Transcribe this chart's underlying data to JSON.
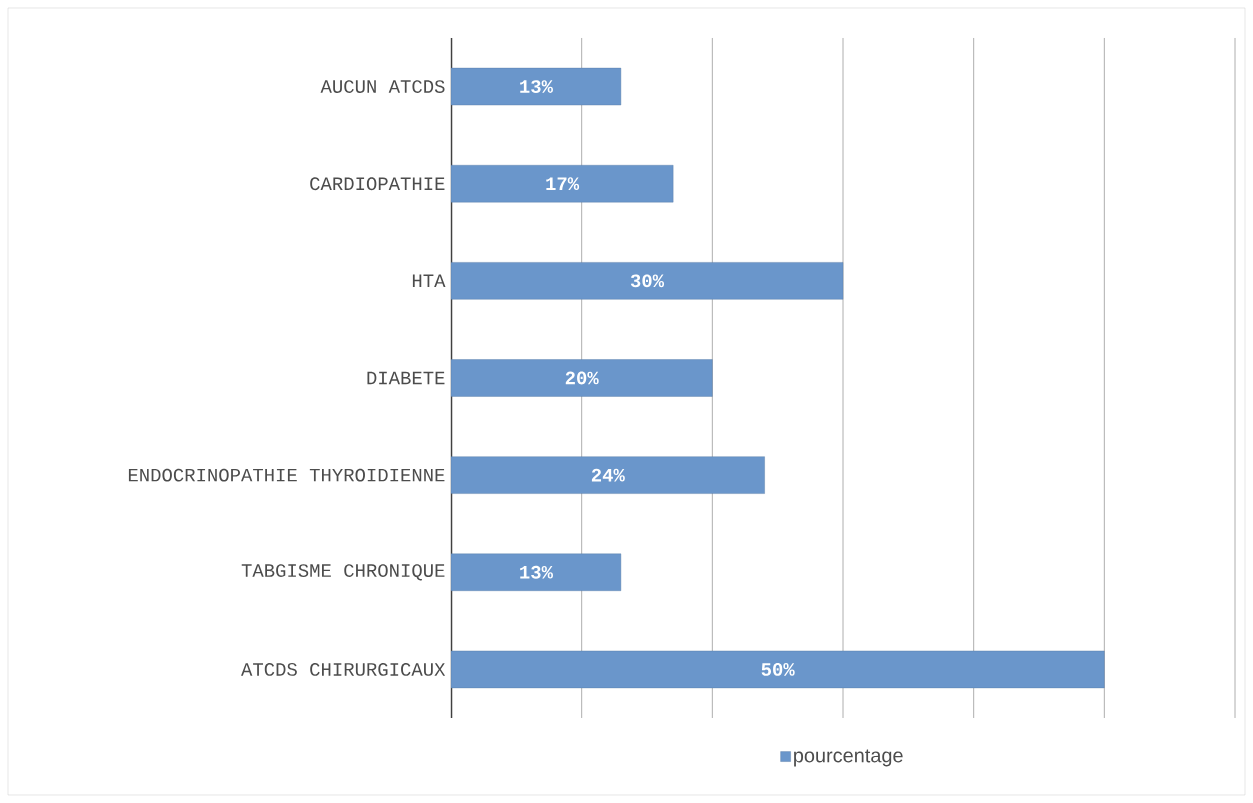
{
  "chart_data": {
    "type": "bar",
    "orientation": "horizontal",
    "categories": [
      "AUCUN ATCDS",
      "CARDIOPATHIE",
      "HTA",
      "DIABETE",
      "ENDOCRINOPATHIE THYROIDIENNE",
      "TABGISME CHRONIQUE",
      "ATCDS CHIRURGICAUX"
    ],
    "series": [
      {
        "name": "pourcentage",
        "color": "#6a96cb",
        "values": [
          13,
          17,
          30,
          20,
          24,
          13,
          50
        ],
        "value_labels": [
          "13%",
          "17%",
          "30%",
          "20%",
          "24%",
          "13%",
          "50%"
        ]
      }
    ],
    "xlim": [
      0,
      60
    ],
    "xticks": [
      {
        "value": 0,
        "label": null
      },
      {
        "value": 10,
        "label": null
      },
      {
        "value": 20,
        "label": null
      },
      {
        "value": 30,
        "label": null
      },
      {
        "value": 40,
        "label": null
      },
      {
        "value": 50,
        "label": null
      },
      {
        "value": 60,
        "label": null
      }
    ],
    "grid": "x",
    "legend": "bottom",
    "tick_labels": "y"
  }
}
